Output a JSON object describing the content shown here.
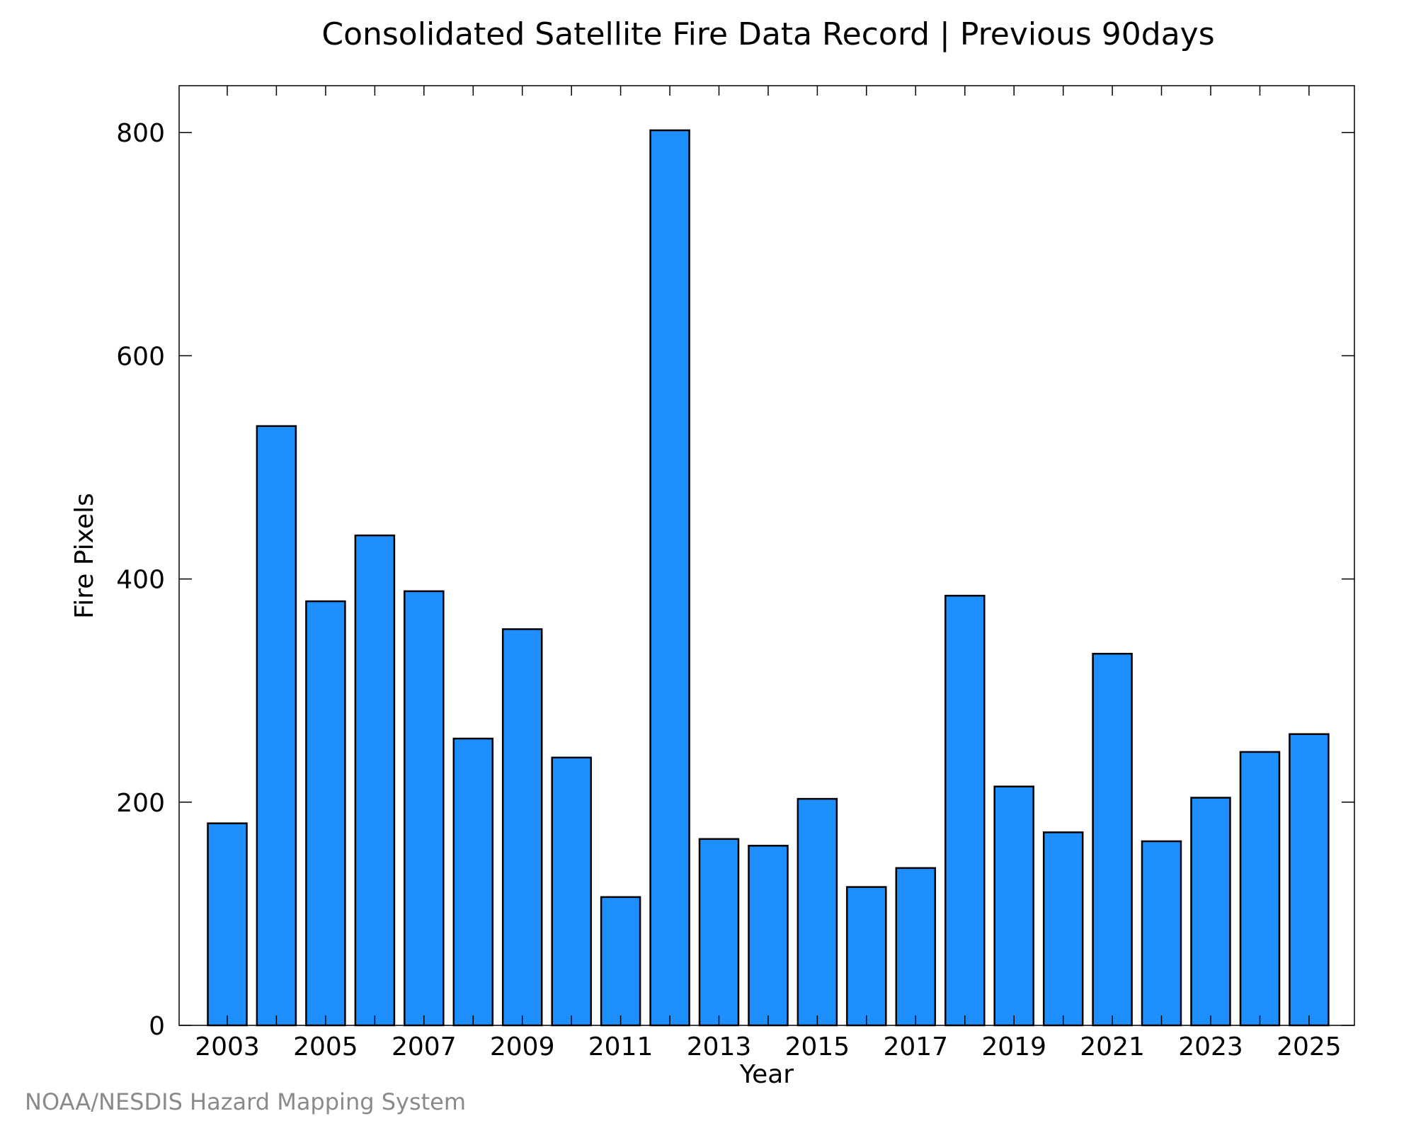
{
  "chart_data": {
    "type": "bar",
    "title": "Consolidated Satellite Fire Data Record | Previous 90days",
    "xlabel": "Year",
    "ylabel": "Fire Pixels",
    "categories": [
      "2003",
      "2004",
      "2005",
      "2006",
      "2007",
      "2008",
      "2009",
      "2010",
      "2011",
      "2012",
      "2013",
      "2014",
      "2015",
      "2016",
      "2017",
      "2018",
      "2019",
      "2020",
      "2021",
      "2022",
      "2023",
      "2024",
      "2025"
    ],
    "values": [
      181,
      537,
      380,
      439,
      389,
      257,
      355,
      240,
      115,
      802,
      167,
      161,
      203,
      124,
      141,
      385,
      214,
      173,
      333,
      165,
      204,
      245,
      261
    ],
    "x_tick_labels": [
      "2003",
      "2005",
      "2007",
      "2009",
      "2011",
      "2013",
      "2015",
      "2017",
      "2019",
      "2021",
      "2023",
      "2025"
    ],
    "y_ticks": [
      0,
      200,
      400,
      600,
      800
    ],
    "ylim": [
      0,
      842
    ],
    "grid": false,
    "legend": "none",
    "colors": {
      "bar_fill": "#1e8fff",
      "bar_stroke": "#000000"
    }
  },
  "footer": {
    "credit": "NOAA/NESDIS Hazard Mapping System"
  }
}
